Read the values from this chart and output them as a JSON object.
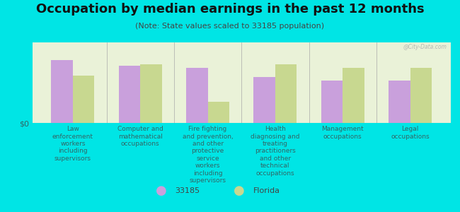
{
  "title": "Occupation by median earnings in the past 12 months",
  "subtitle": "(Note: State values scaled to 33185 population)",
  "background_color": "#00e5e5",
  "plot_bg_color": "#eaf2d8",
  "categories": [
    "Law\nenforcement\nworkers\nincluding\nsupervisors",
    "Computer and\nmathematical\noccupations",
    "Fire fighting\nand prevention,\nand other\nprotective\nservice\nworkers\nincluding\nsupervisors",
    "Health\ndiagnosing and\ntreating\npractitioners\nand other\ntechnical\noccupations",
    "Management\noccupations",
    "Legal\noccupations"
  ],
  "values_33185": [
    0.82,
    0.75,
    0.72,
    0.6,
    0.55,
    0.55
  ],
  "values_florida": [
    0.62,
    0.76,
    0.28,
    0.76,
    0.72,
    0.72
  ],
  "color_33185": "#c9a0dc",
  "color_florida": "#c8d890",
  "legend_33185": "33185",
  "legend_florida": "Florida",
  "ylabel": "$0",
  "watermark": "@City-Data.com",
  "title_fontsize": 13,
  "subtitle_fontsize": 8,
  "tick_fontsize": 6.5,
  "tick_color": "#336666"
}
